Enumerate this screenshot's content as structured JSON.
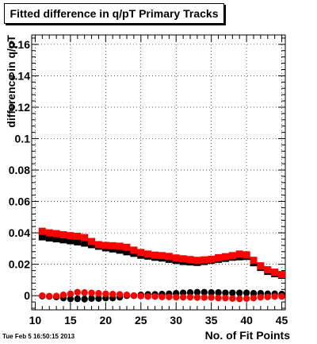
{
  "title": "Fitted difference in q/pT Primary Tracks",
  "timestamp": "Tue Feb  5 16:50:15 2013",
  "chart_data": {
    "type": "scatter",
    "title": "Fitted difference in q/pT Primary Tracks",
    "xlabel": "No. of Fit Points",
    "ylabel": "difference in q/pT",
    "xlim": [
      9.5,
      45.5
    ],
    "ylim": [
      -0.009,
      0.166
    ],
    "grid": true,
    "x_ticks": [
      10,
      15,
      20,
      25,
      30,
      35,
      40,
      45
    ],
    "x_tick_labels": [
      "10",
      "15",
      "20",
      "25",
      "30",
      "35",
      "40",
      "45"
    ],
    "y_ticks": [
      0,
      0.02,
      0.04,
      0.06,
      0.08,
      0.1,
      0.12,
      0.14,
      0.16
    ],
    "y_tick_labels": [
      "0",
      "0.02",
      "0.04",
      "0.06",
      "0.08",
      "0.1",
      "0.12",
      "0.14",
      "0.16"
    ],
    "x": [
      11,
      12,
      13,
      14,
      15,
      16,
      17,
      18,
      19,
      20,
      21,
      22,
      23,
      24,
      25,
      26,
      27,
      28,
      29,
      30,
      31,
      32,
      33,
      34,
      35,
      36,
      37,
      38,
      39,
      40,
      41,
      42,
      43,
      44,
      45
    ],
    "series": [
      {
        "marker": "square",
        "color": "#000000",
        "values": [
          0.0375,
          0.0368,
          0.0362,
          0.0356,
          0.035,
          0.0343,
          0.0335,
          0.0325,
          0.0315,
          0.0305,
          0.0298,
          0.029,
          0.028,
          0.027,
          0.0258,
          0.0252,
          0.0245,
          0.024,
          0.0232,
          0.0225,
          0.0218,
          0.0215,
          0.0212,
          0.0218,
          0.0225,
          0.0232,
          0.0238,
          0.0245,
          0.0248,
          0.025,
          0.021,
          0.018,
          0.0155,
          0.014,
          0.013
        ]
      },
      {
        "marker": "square",
        "color": "#ff0000",
        "values": [
          0.041,
          0.04,
          0.0395,
          0.0388,
          0.0382,
          0.0378,
          0.037,
          0.0345,
          0.0325,
          0.032,
          0.0318,
          0.0315,
          0.0308,
          0.029,
          0.0275,
          0.0265,
          0.0258,
          0.0255,
          0.025,
          0.024,
          0.0235,
          0.023,
          0.0225,
          0.0228,
          0.0232,
          0.0242,
          0.0248,
          0.0255,
          0.0265,
          0.026,
          0.0225,
          0.019,
          0.0165,
          0.015,
          0.0135
        ]
      },
      {
        "marker": "circle",
        "color": "#000000",
        "values": [
          -0.0003,
          -0.0005,
          -0.0008,
          -0.0015,
          -0.002,
          -0.002,
          -0.0022,
          -0.0018,
          -0.0018,
          -0.0015,
          -0.0015,
          -0.001,
          0.0,
          0.0,
          0.0005,
          0.0008,
          0.0008,
          0.001,
          0.0012,
          0.0015,
          0.0018,
          0.002,
          0.0022,
          0.0022,
          0.002,
          0.002,
          0.0018,
          0.0018,
          0.0018,
          0.0018,
          0.0015,
          0.0015,
          0.0012,
          0.0012,
          0.001
        ]
      },
      {
        "marker": "circle",
        "color": "#ff0000",
        "values": [
          0.0,
          -0.0003,
          -0.0002,
          0.0005,
          0.0012,
          0.0022,
          0.002,
          0.0018,
          0.0015,
          0.0012,
          0.001,
          0.0008,
          0.0005,
          0.0,
          -0.0002,
          -0.0005,
          -0.0005,
          -0.0008,
          -0.0008,
          -0.001,
          -0.001,
          -0.001,
          -0.0012,
          -0.0012,
          -0.0012,
          -0.0015,
          -0.0015,
          -0.0018,
          -0.002,
          -0.0018,
          -0.0015,
          -0.001,
          -0.0008,
          -0.0005,
          -0.0005
        ]
      }
    ]
  }
}
